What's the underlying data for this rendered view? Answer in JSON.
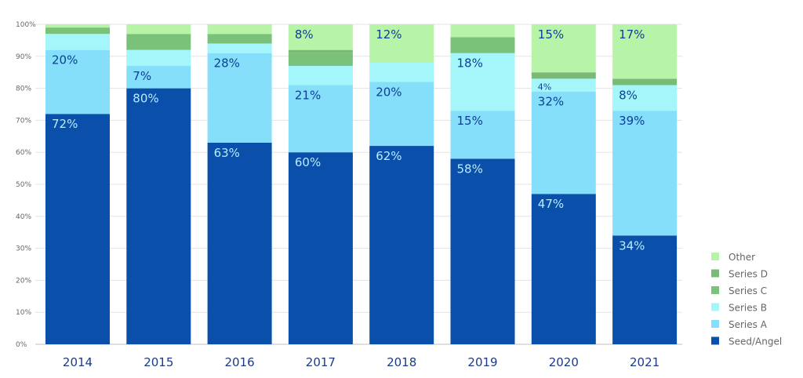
{
  "chart_data": {
    "type": "bar",
    "stacked": true,
    "categories": [
      "2014",
      "2015",
      "2016",
      "2017",
      "2018",
      "2019",
      "2020",
      "2021"
    ],
    "series": [
      {
        "name": "Seed/Angel",
        "color": "#0a4faa",
        "values": [
          72,
          80,
          63,
          60,
          62,
          58,
          47,
          34
        ],
        "labels": [
          "72%",
          "80%",
          "63%",
          "60%",
          "62%",
          "58%",
          "47%",
          "34%"
        ]
      },
      {
        "name": "Series A",
        "color": "#85dffa",
        "values": [
          20,
          7,
          28,
          21,
          20,
          15,
          32,
          39
        ],
        "labels": [
          "20%",
          "7%",
          "28%",
          "21%",
          "20%",
          "15%",
          "32%",
          "39%"
        ]
      },
      {
        "name": "Series B",
        "color": "#a4f6fb",
        "values": [
          5,
          5,
          3,
          6,
          6,
          18,
          4,
          8
        ],
        "labels": [
          "",
          "",
          "",
          "",
          "",
          "18%",
          "4%",
          "8%"
        ]
      },
      {
        "name": "Series C",
        "color": "#7ac27a",
        "values": [
          2,
          5,
          3,
          4,
          0,
          5,
          0,
          0
        ],
        "labels": [
          "",
          "",
          "",
          "",
          "",
          "",
          "",
          ""
        ]
      },
      {
        "name": "Series D",
        "color": "#79bb76",
        "values": [
          0,
          0,
          0,
          1,
          0,
          0,
          2,
          2
        ],
        "labels": [
          "",
          "",
          "",
          "",
          "",
          "",
          "",
          ""
        ]
      },
      {
        "name": "Other",
        "color": "#b8f4a8",
        "values": [
          1,
          3,
          3,
          8,
          12,
          4,
          15,
          17
        ],
        "labels": [
          "",
          "",
          "",
          "8%",
          "12%",
          "",
          "15%",
          "17%"
        ]
      }
    ],
    "ylim": [
      0,
      100
    ],
    "yticks": [
      "0%",
      "10%",
      "20%",
      "30%",
      "40%",
      "50%",
      "60%",
      "70%",
      "80%",
      "90%",
      "100%"
    ],
    "grid": true,
    "legend": "bottom-right"
  }
}
